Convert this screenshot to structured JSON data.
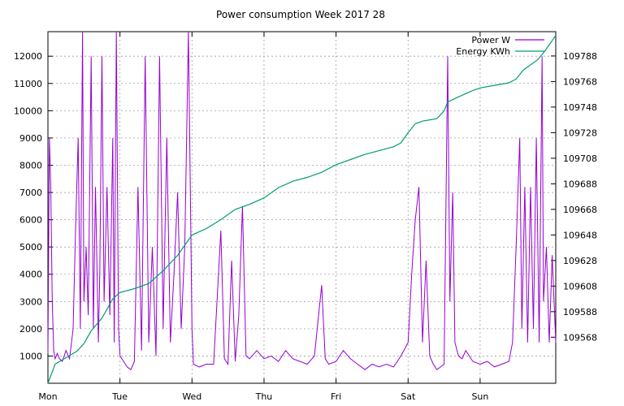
{
  "chart_data": {
    "type": "line",
    "title": "Power consumption Week 2017 28",
    "x_categories": [
      "Mon",
      "Tue",
      "Wed",
      "Thu",
      "Fri",
      "Sat",
      "Sun"
    ],
    "xlim": [
      0,
      7.05
    ],
    "ylim": [
      0,
      12900
    ],
    "y2lim": [
      109532,
      109807
    ],
    "y_ticks": [
      "1000",
      "2000",
      "3000",
      "4000",
      "5000",
      "6000",
      "7000",
      "8000",
      "9000",
      "10000",
      "11000",
      "12000"
    ],
    "y2_ticks": [
      "109568",
      "109588",
      "109608",
      "109628",
      "109648",
      "109668",
      "109688",
      "109708",
      "109728",
      "109748",
      "109768",
      "109788"
    ],
    "grid": true,
    "legend_position": "top-right",
    "series": [
      {
        "name": "Power W",
        "axis": "left",
        "color": "#9400d3",
        "points": [
          [
            0.0,
            1100
          ],
          [
            0.02,
            9000
          ],
          [
            0.04,
            7200
          ],
          [
            0.06,
            3000
          ],
          [
            0.08,
            1200
          ],
          [
            0.1,
            900
          ],
          [
            0.13,
            1100
          ],
          [
            0.16,
            900
          ],
          [
            0.2,
            800
          ],
          [
            0.25,
            1200
          ],
          [
            0.3,
            900
          ],
          [
            0.35,
            2000
          ],
          [
            0.38,
            5300
          ],
          [
            0.42,
            9000
          ],
          [
            0.45,
            2000
          ],
          [
            0.48,
            12900
          ],
          [
            0.5,
            3000
          ],
          [
            0.53,
            5000
          ],
          [
            0.56,
            2500
          ],
          [
            0.6,
            12000
          ],
          [
            0.63,
            2000
          ],
          [
            0.66,
            7200
          ],
          [
            0.7,
            1500
          ],
          [
            0.72,
            4000
          ],
          [
            0.75,
            12000
          ],
          [
            0.78,
            3000
          ],
          [
            0.82,
            7200
          ],
          [
            0.86,
            2500
          ],
          [
            0.9,
            9000
          ],
          [
            0.92,
            1500
          ],
          [
            0.95,
            12900
          ],
          [
            0.98,
            2000
          ],
          [
            1.0,
            1000
          ],
          [
            1.05,
            800
          ],
          [
            1.1,
            600
          ],
          [
            1.15,
            500
          ],
          [
            1.2,
            800
          ],
          [
            1.25,
            7200
          ],
          [
            1.3,
            1200
          ],
          [
            1.35,
            12000
          ],
          [
            1.4,
            1500
          ],
          [
            1.45,
            5000
          ],
          [
            1.5,
            1000
          ],
          [
            1.55,
            12000
          ],
          [
            1.6,
            2000
          ],
          [
            1.65,
            9000
          ],
          [
            1.7,
            1500
          ],
          [
            1.75,
            4000
          ],
          [
            1.8,
            7000
          ],
          [
            1.85,
            2000
          ],
          [
            1.9,
            5000
          ],
          [
            1.95,
            12900
          ],
          [
            2.0,
            2000
          ],
          [
            2.02,
            700
          ],
          [
            2.1,
            600
          ],
          [
            2.2,
            700
          ],
          [
            2.3,
            700
          ],
          [
            2.4,
            5600
          ],
          [
            2.45,
            900
          ],
          [
            2.5,
            700
          ],
          [
            2.55,
            4500
          ],
          [
            2.6,
            800
          ],
          [
            2.65,
            2500
          ],
          [
            2.7,
            6500
          ],
          [
            2.75,
            1000
          ],
          [
            2.8,
            900
          ],
          [
            2.9,
            1200
          ],
          [
            3.0,
            900
          ],
          [
            3.1,
            1000
          ],
          [
            3.2,
            800
          ],
          [
            3.3,
            1200
          ],
          [
            3.4,
            900
          ],
          [
            3.5,
            800
          ],
          [
            3.6,
            700
          ],
          [
            3.7,
            1000
          ],
          [
            3.8,
            3600
          ],
          [
            3.85,
            900
          ],
          [
            3.9,
            700
          ],
          [
            4.0,
            800
          ],
          [
            4.1,
            1200
          ],
          [
            4.2,
            900
          ],
          [
            4.3,
            700
          ],
          [
            4.4,
            500
          ],
          [
            4.5,
            700
          ],
          [
            4.6,
            600
          ],
          [
            4.7,
            700
          ],
          [
            4.8,
            600
          ],
          [
            4.9,
            1000
          ],
          [
            5.0,
            1500
          ],
          [
            5.05,
            4000
          ],
          [
            5.1,
            6000
          ],
          [
            5.15,
            7200
          ],
          [
            5.2,
            1500
          ],
          [
            5.25,
            4500
          ],
          [
            5.3,
            1000
          ],
          [
            5.35,
            700
          ],
          [
            5.4,
            500
          ],
          [
            5.45,
            600
          ],
          [
            5.5,
            700
          ],
          [
            5.55,
            12000
          ],
          [
            5.58,
            3000
          ],
          [
            5.62,
            7000
          ],
          [
            5.65,
            1500
          ],
          [
            5.7,
            1000
          ],
          [
            5.75,
            900
          ],
          [
            5.8,
            1200
          ],
          [
            5.9,
            800
          ],
          [
            6.0,
            700
          ],
          [
            6.1,
            800
          ],
          [
            6.2,
            600
          ],
          [
            6.3,
            700
          ],
          [
            6.4,
            800
          ],
          [
            6.45,
            1500
          ],
          [
            6.5,
            5000
          ],
          [
            6.55,
            9000
          ],
          [
            6.58,
            2000
          ],
          [
            6.62,
            7200
          ],
          [
            6.66,
            1500
          ],
          [
            6.7,
            7200
          ],
          [
            6.74,
            2000
          ],
          [
            6.78,
            9000
          ],
          [
            6.82,
            1500
          ],
          [
            6.86,
            12000
          ],
          [
            6.88,
            3000
          ],
          [
            6.92,
            5000
          ],
          [
            6.96,
            1500
          ],
          [
            7.0,
            4700
          ],
          [
            7.05,
            1500
          ]
        ]
      },
      {
        "name": "Energy KWh",
        "axis": "right",
        "color": "#009e73",
        "points": [
          [
            0.0,
            109532
          ],
          [
            0.1,
            109547
          ],
          [
            0.25,
            109552
          ],
          [
            0.4,
            109557
          ],
          [
            0.5,
            109563
          ],
          [
            0.6,
            109573
          ],
          [
            0.75,
            109583
          ],
          [
            0.9,
            109598
          ],
          [
            1.0,
            109603
          ],
          [
            1.2,
            109606
          ],
          [
            1.4,
            109610
          ],
          [
            1.6,
            109620
          ],
          [
            1.8,
            109632
          ],
          [
            2.0,
            109648
          ],
          [
            2.2,
            109653
          ],
          [
            2.4,
            109660
          ],
          [
            2.6,
            109668
          ],
          [
            2.8,
            109672
          ],
          [
            3.0,
            109677
          ],
          [
            3.2,
            109685
          ],
          [
            3.4,
            109690
          ],
          [
            3.6,
            109693
          ],
          [
            3.8,
            109697
          ],
          [
            4.0,
            109703
          ],
          [
            4.2,
            109707
          ],
          [
            4.4,
            109711
          ],
          [
            4.6,
            109714
          ],
          [
            4.8,
            109717
          ],
          [
            4.9,
            109720
          ],
          [
            5.0,
            109728
          ],
          [
            5.1,
            109735
          ],
          [
            5.2,
            109737
          ],
          [
            5.3,
            109738
          ],
          [
            5.4,
            109739
          ],
          [
            5.45,
            109742
          ],
          [
            5.5,
            109745
          ],
          [
            5.55,
            109752
          ],
          [
            5.7,
            109756
          ],
          [
            5.9,
            109761
          ],
          [
            6.0,
            109763
          ],
          [
            6.2,
            109765
          ],
          [
            6.4,
            109767
          ],
          [
            6.5,
            109770
          ],
          [
            6.6,
            109777
          ],
          [
            6.8,
            109785
          ],
          [
            6.9,
            109792
          ],
          [
            7.05,
            109804
          ]
        ]
      }
    ]
  }
}
